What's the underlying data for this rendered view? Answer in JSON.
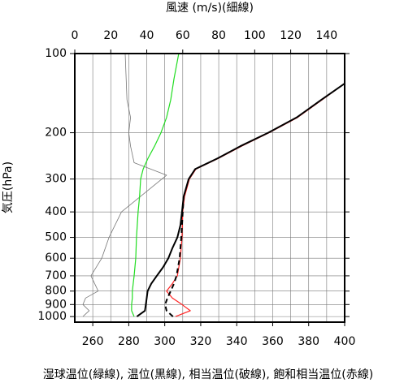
{
  "chart_data": {
    "type": "line",
    "x2label": "風速 (m/s)(細線)",
    "ylabel": "気圧(hPa)",
    "caption": "湿球温位(緑線), 温位(黒線), 相当温位(破線), 飽和相当温位(赤線)",
    "xlim": [
      250,
      400
    ],
    "xticks": [
      260,
      280,
      300,
      320,
      340,
      360,
      380,
      400
    ],
    "x2lim": [
      0,
      150
    ],
    "x2ticks": [
      0,
      20,
      40,
      60,
      80,
      100,
      120,
      140
    ],
    "ylim": [
      1050,
      100
    ],
    "ylog": true,
    "yticks": [
      100,
      200,
      300,
      400,
      500,
      600,
      700,
      800,
      900,
      1000
    ],
    "grid": true,
    "series": [
      {
        "color": "#777777",
        "width": 0.8,
        "axis": "x2",
        "x": [
          4.5,
          8,
          4.5,
          6,
          13,
          9,
          15,
          19,
          26,
          51,
          33,
          31,
          30,
          31,
          29,
          28
        ],
        "y": [
          1000,
          950,
          900,
          850,
          800,
          700,
          600,
          500,
          400,
          290,
          260,
          225,
          200,
          175,
          150,
          100
        ]
      },
      {
        "color": "#22dd22",
        "width": 1.2,
        "x": [
          283,
          281.6,
          281.6,
          282,
          282,
          283,
          283.9,
          284.3,
          285.2,
          286,
          286.6,
          288,
          290.7,
          294.3,
          297.9,
          301,
          303.3,
          305.1,
          307.8
        ],
        "y": [
          1000,
          950,
          900,
          850,
          800,
          700,
          600,
          500,
          400,
          350,
          300,
          275,
          250,
          225,
          200,
          175,
          150,
          125,
          100
        ]
      },
      {
        "color": "#ff2222",
        "width": 1.2,
        "x": [
          306,
          314.2,
          309.6,
          304.2,
          301,
          304.2,
          307,
          308.7,
          309.6,
          310,
          311,
          313.7,
          317.3,
          330,
          342.6,
          358,
          373.8,
          387.4,
          400
        ],
        "y": [
          1000,
          950,
          900,
          850,
          800,
          750,
          700,
          600,
          500,
          400,
          350,
          300,
          275,
          250,
          225,
          200,
          175,
          150,
          130
        ]
      },
      {
        "color": "#000000",
        "width": 2,
        "x": [
          284.5,
          289,
          289.5,
          290,
          290.5,
          292.5,
          295.6,
          299,
          302,
          304.2,
          307,
          308.7,
          309.6,
          310.5,
          313.3,
          316.9,
          329.5,
          342,
          357.5,
          373.3,
          387,
          400
        ],
        "y": [
          1000,
          950,
          900,
          850,
          800,
          750,
          700,
          650,
          600,
          550,
          500,
          450,
          400,
          350,
          300,
          275,
          250,
          225,
          200,
          175,
          150,
          130
        ]
      },
      {
        "color": "#000000",
        "width": 2,
        "dashed": true,
        "x": [
          304.6,
          301,
          300.2,
          301.5,
          303.3,
          305.1,
          306.5,
          307.4,
          308.3,
          308.7,
          309.2,
          309.6,
          310,
          310.5
        ],
        "y": [
          1000,
          950,
          900,
          850,
          800,
          750,
          700,
          650,
          600,
          550,
          500,
          450,
          400,
          350
        ]
      }
    ]
  }
}
